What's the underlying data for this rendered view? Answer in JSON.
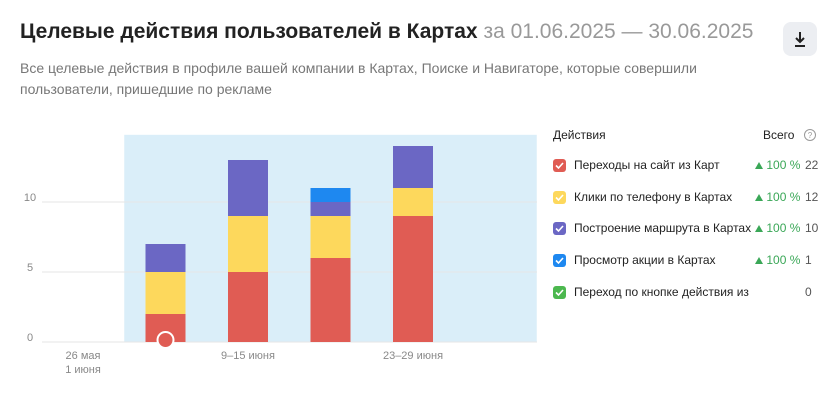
{
  "header": {
    "title": "Целевые действия пользователей в Картах",
    "period": "за 01.06.2025 — 30.06.2025",
    "subtitle": "Все целевые действия в профиле вашей компании в Картах, Поиске и Навигаторе, которые совершили пользователи, пришедшие по рекламе"
  },
  "chart_data": {
    "type": "stacked-bar",
    "categories": [
      [
        "26 мая",
        "1 июня"
      ],
      null,
      "9–15 июня",
      null,
      "23–29 июня",
      null
    ],
    "highlight_range": [
      1,
      5
    ],
    "series": [
      {
        "name": "Переходы на сайт из Карт",
        "color": "#e05c54",
        "values": [
          0,
          2,
          5,
          6,
          9,
          0
        ],
        "total": 22,
        "change": {
          "value": 100,
          "label": "100 %"
        }
      },
      {
        "name": "Клики по телефону в Картах",
        "color": "#fdd85c",
        "values": [
          0,
          3,
          4,
          3,
          2,
          0
        ],
        "total": 12,
        "change": {
          "value": 100,
          "label": "100 %"
        }
      },
      {
        "name": "Построение маршрута в Картах",
        "color": "#6b67c4",
        "values": [
          0,
          2,
          4,
          1,
          3,
          0
        ],
        "total": 10,
        "change": {
          "value": 100,
          "label": "100 %"
        }
      },
      {
        "name": "Просмотр акции в Картах",
        "color": "#1e88f0",
        "values": [
          0,
          0,
          0,
          1,
          0,
          0
        ],
        "total": 1,
        "change": {
          "value": 100,
          "label": "100 %"
        }
      },
      {
        "name": "Переход по кнопке действия из Карт",
        "color": "#4cb84f",
        "values": [
          0,
          0,
          0,
          0,
          0,
          0
        ],
        "total": 0
      }
    ],
    "ylim": [
      0,
      14.8
    ],
    "yticks": [
      0,
      5,
      10
    ],
    "grid": true,
    "legend_title": "Действия",
    "legend_total_title": "Всего"
  }
}
